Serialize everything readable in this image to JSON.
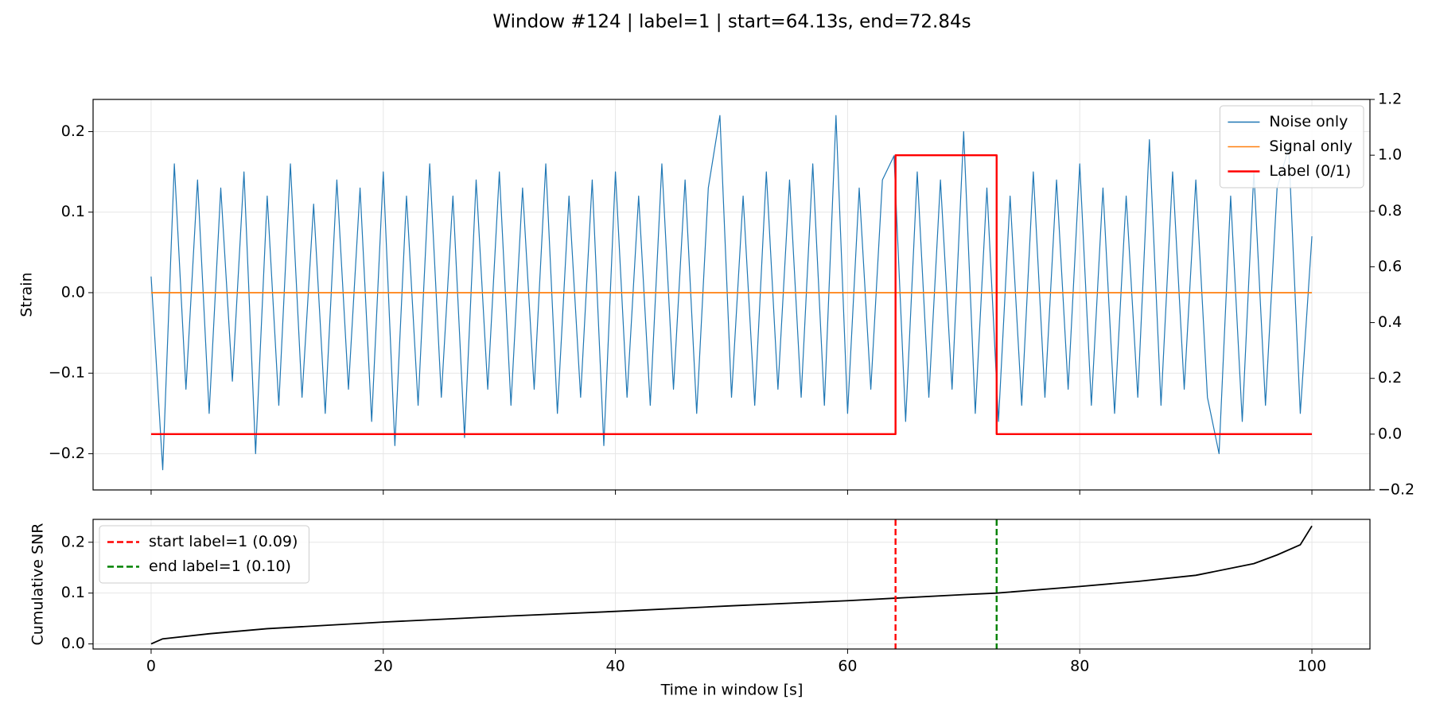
{
  "chart_data": [
    {
      "type": "line",
      "title": "Window #124 | label=1 | start=64.13s, end=72.84s",
      "ylabel": "Strain",
      "xlim": [
        -5,
        105
      ],
      "ylim": [
        -0.245,
        0.24
      ],
      "yticks": [
        {
          "value": -0.2,
          "label": "−0.2"
        },
        {
          "value": -0.1,
          "label": "−0.1"
        },
        {
          "value": 0,
          "label": "0.0"
        },
        0.1,
        0.2
      ],
      "y2lim": [
        -0.2,
        1.2
      ],
      "y2ticks": [
        {
          "value": -0.2,
          "label": "−0.2"
        },
        {
          "value": 0,
          "label": "0.0"
        },
        0.2,
        0.4,
        0.6,
        0.8,
        {
          "value": 1,
          "label": "1.0"
        },
        1.2
      ],
      "grid": true,
      "legend": "upper right",
      "series": [
        {
          "name": "Noise only",
          "color": "#1f77b4",
          "x": [
            0,
            1,
            2,
            3,
            4,
            5,
            6,
            7,
            8,
            9,
            10,
            11,
            12,
            13,
            14,
            15,
            16,
            17,
            18,
            19,
            20,
            21,
            22,
            23,
            24,
            25,
            26,
            27,
            28,
            29,
            30,
            31,
            32,
            33,
            34,
            35,
            36,
            37,
            38,
            39,
            40,
            41,
            42,
            43,
            44,
            45,
            46,
            47,
            48,
            49,
            50,
            51,
            52,
            53,
            54,
            55,
            56,
            57,
            58,
            59,
            60,
            61,
            62,
            63,
            64,
            65,
            66,
            67,
            68,
            69,
            70,
            71,
            72,
            73,
            74,
            75,
            76,
            77,
            78,
            79,
            80,
            81,
            82,
            83,
            84,
            85,
            86,
            87,
            88,
            89,
            90,
            91,
            92,
            93,
            94,
            95,
            96,
            97,
            98,
            99,
            100
          ],
          "values": [
            0.02,
            -0.22,
            0.16,
            -0.12,
            0.14,
            -0.15,
            0.13,
            -0.11,
            0.15,
            -0.2,
            0.12,
            -0.14,
            0.16,
            -0.13,
            0.11,
            -0.15,
            0.14,
            -0.12,
            0.13,
            -0.16,
            0.15,
            -0.19,
            0.12,
            -0.14,
            0.16,
            -0.13,
            0.12,
            -0.18,
            0.14,
            -0.12,
            0.15,
            -0.14,
            0.13,
            -0.12,
            0.16,
            -0.15,
            0.12,
            -0.13,
            0.14,
            -0.19,
            0.15,
            -0.13,
            0.12,
            -0.14,
            0.16,
            -0.12,
            0.14,
            -0.15,
            0.13,
            0.22,
            -0.13,
            0.12,
            -0.14,
            0.15,
            -0.12,
            0.14,
            -0.13,
            0.16,
            -0.14,
            0.22,
            -0.15,
            0.13,
            -0.12,
            0.14,
            0.17,
            -0.16,
            0.15,
            -0.13,
            0.14,
            -0.12,
            0.2,
            -0.15,
            0.13,
            -0.16,
            0.12,
            -0.14,
            0.15,
            -0.13,
            0.14,
            -0.12,
            0.16,
            -0.14,
            0.13,
            -0.15,
            0.12,
            -0.13,
            0.19,
            -0.14,
            0.15,
            -0.12,
            0.14,
            -0.13,
            -0.2,
            0.12,
            -0.16,
            0.15,
            -0.14,
            0.13,
            0.18,
            -0.15,
            0.07
          ]
        },
        {
          "name": "Signal only",
          "color": "#ff7f0e",
          "x": [
            0,
            100
          ],
          "values": [
            0,
            0
          ]
        },
        {
          "name": "Label (0/1)",
          "color": "#ff0000",
          "axis": "y2",
          "x": [
            0,
            64.13,
            64.13,
            72.84,
            72.84,
            100
          ],
          "values": [
            0,
            0,
            1,
            1,
            0,
            0
          ]
        }
      ]
    },
    {
      "type": "line",
      "xlabel": "Time in window [s]",
      "ylabel": "Cumulative SNR",
      "xlim": [
        -5,
        105
      ],
      "xticks": [
        0,
        20,
        40,
        60,
        80,
        100
      ],
      "ylim": [
        -0.01,
        0.245
      ],
      "yticks": [
        {
          "value": 0,
          "label": "0.0"
        },
        0.1,
        0.2
      ],
      "grid": true,
      "legend": "upper left",
      "series": [
        {
          "color": "#000000",
          "x": [
            0,
            1,
            5,
            10,
            20,
            30,
            40,
            50,
            60,
            64.13,
            70,
            72.84,
            80,
            85,
            90,
            95,
            97,
            99,
            100
          ],
          "values": [
            0,
            0.01,
            0.02,
            0.03,
            0.043,
            0.054,
            0.064,
            0.075,
            0.085,
            0.09,
            0.097,
            0.1,
            0.113,
            0.123,
            0.135,
            0.158,
            0.175,
            0.195,
            0.232
          ]
        }
      ],
      "vlines": [
        {
          "name": "start label=1 (0.09)",
          "x": 64.13,
          "color": "#ff0000"
        },
        {
          "name": "end label=1 (0.10)",
          "x": 72.84,
          "color": "#008000"
        }
      ]
    }
  ]
}
